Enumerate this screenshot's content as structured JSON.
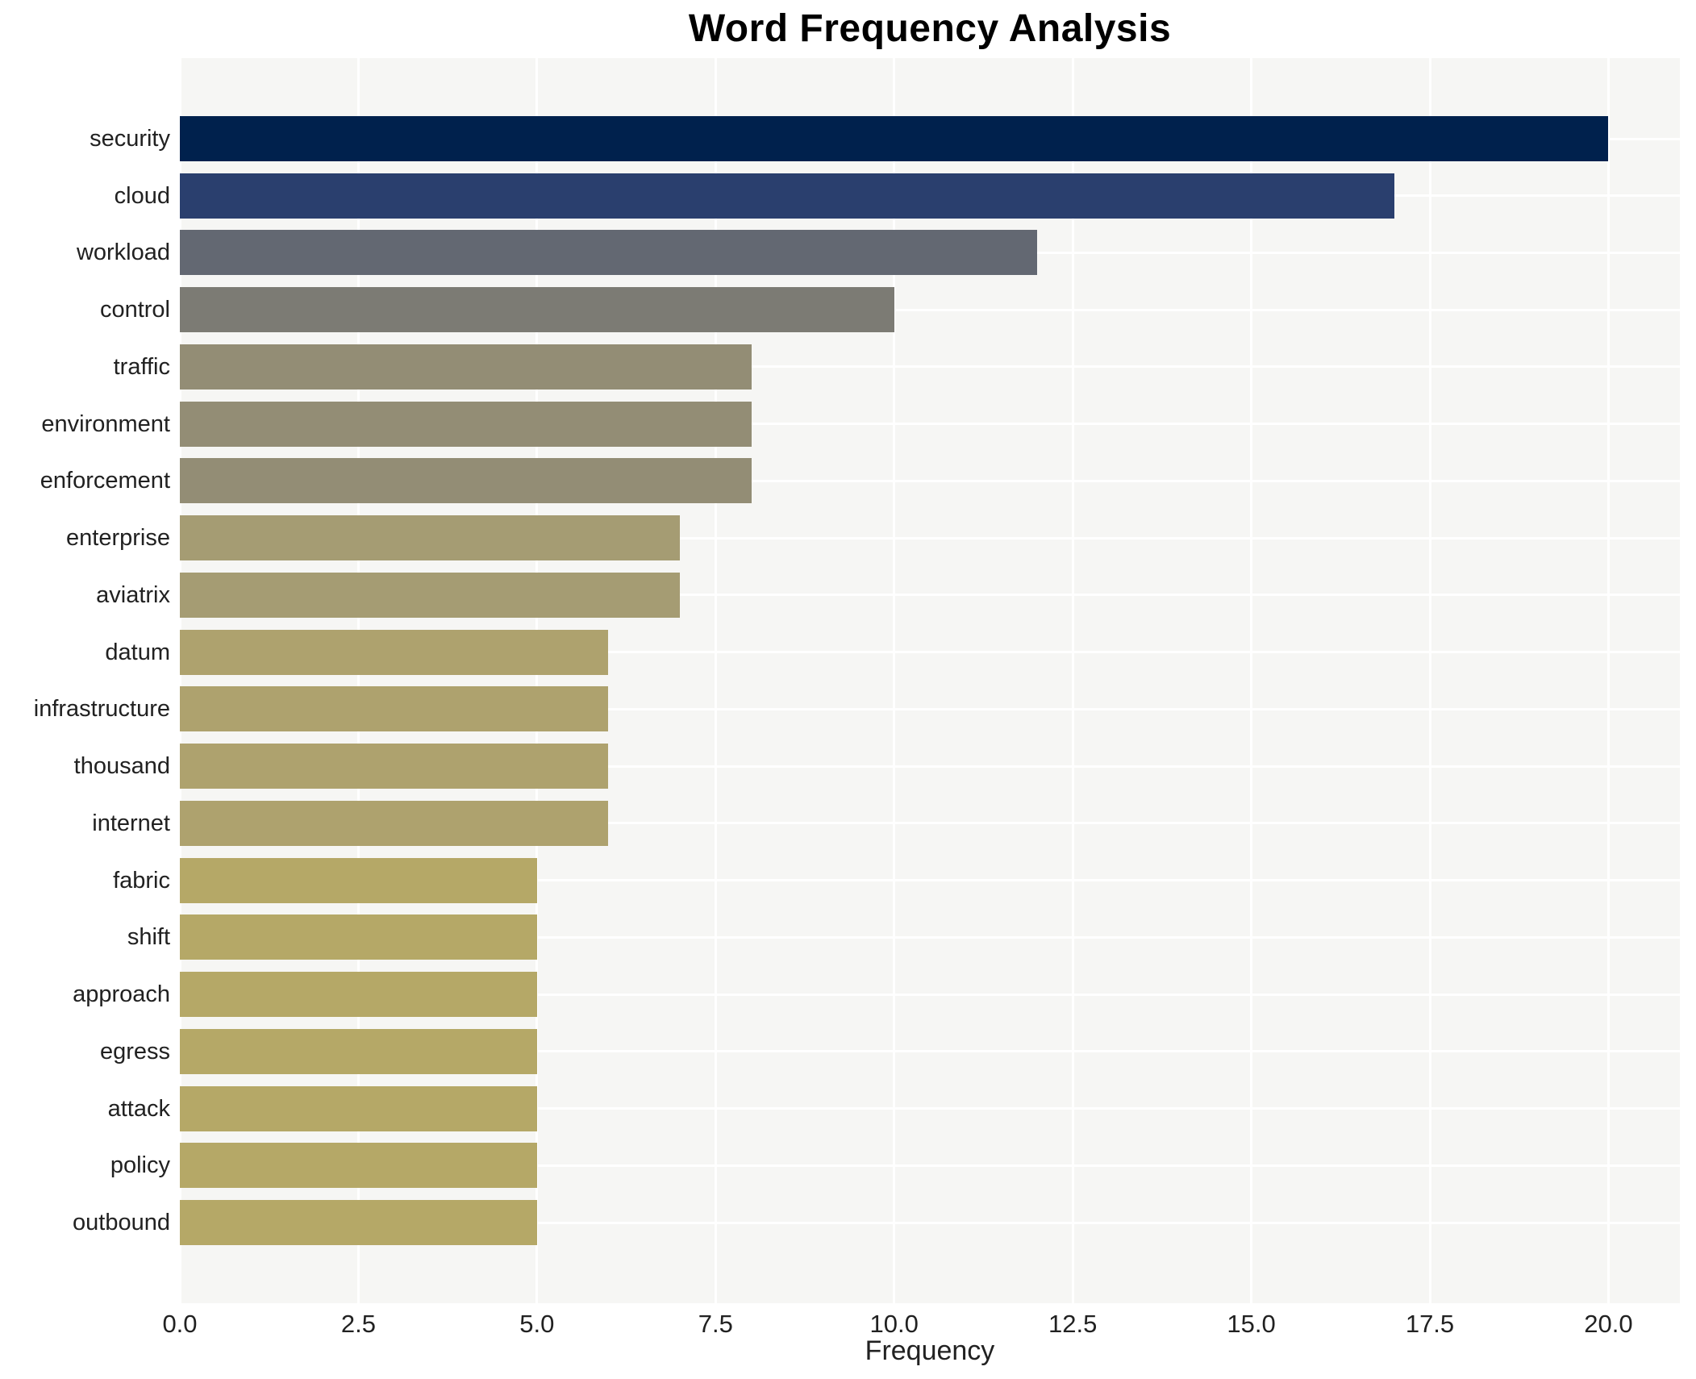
{
  "chart_data": {
    "type": "bar",
    "orientation": "horizontal",
    "title": "Word Frequency Analysis",
    "xlabel": "Frequency",
    "ylabel": "",
    "grid": true,
    "legend": false,
    "xlim": [
      0,
      21
    ],
    "xticks": [
      0,
      2.5,
      5,
      7.5,
      10,
      12.5,
      15,
      17.5,
      20
    ],
    "xtick_labels": [
      "0.0",
      "2.5",
      "5.0",
      "7.5",
      "10.0",
      "12.5",
      "15.0",
      "17.5",
      "20.0"
    ],
    "categories": [
      "security",
      "cloud",
      "workload",
      "control",
      "traffic",
      "environment",
      "enforcement",
      "enterprise",
      "aviatrix",
      "datum",
      "infrastructure",
      "thousand",
      "internet",
      "fabric",
      "shift",
      "approach",
      "egress",
      "attack",
      "policy",
      "outbound"
    ],
    "values": [
      20,
      17,
      12,
      10,
      8,
      8,
      8,
      7,
      7,
      6,
      6,
      6,
      6,
      5,
      5,
      5,
      5,
      5,
      5,
      5
    ],
    "bar_colors": [
      "#00214d",
      "#2a3f6e",
      "#636872",
      "#7c7b74",
      "#938d75",
      "#938d75",
      "#938d75",
      "#a59c73",
      "#a59c73",
      "#aea26e",
      "#aea26e",
      "#aea26e",
      "#aea26e",
      "#b5a867",
      "#b5a867",
      "#b5a867",
      "#b5a867",
      "#b5a867",
      "#b5a867",
      "#b5a867"
    ],
    "colormap": "cividis_reversed"
  },
  "style": {
    "plot_bg": "#f6f6f4",
    "grid_color": "#ffffff",
    "text_color": "#212121",
    "title_color": "#000000"
  }
}
